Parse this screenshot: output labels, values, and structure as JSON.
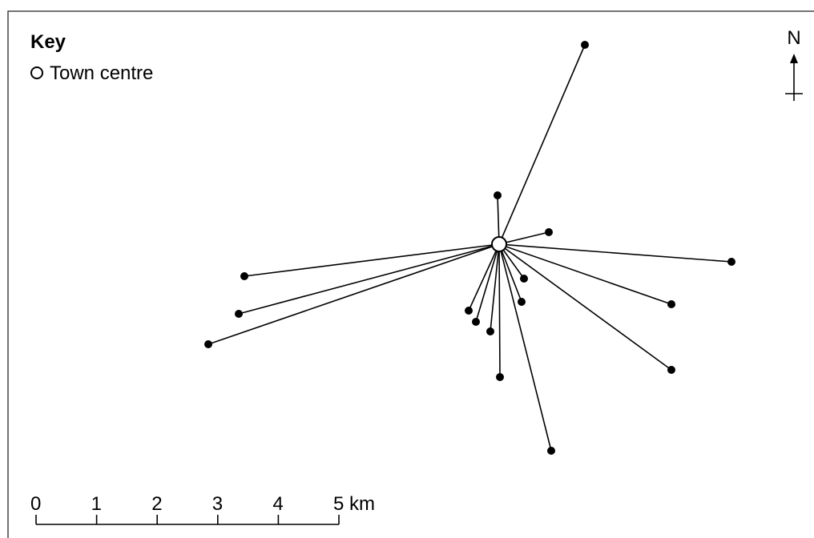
{
  "key": {
    "title": "Key",
    "items": [
      "Town centre"
    ]
  },
  "north": "N",
  "scale": {
    "labels": [
      "0",
      "1",
      "2",
      "3",
      "4",
      "5 km"
    ]
  }
}
